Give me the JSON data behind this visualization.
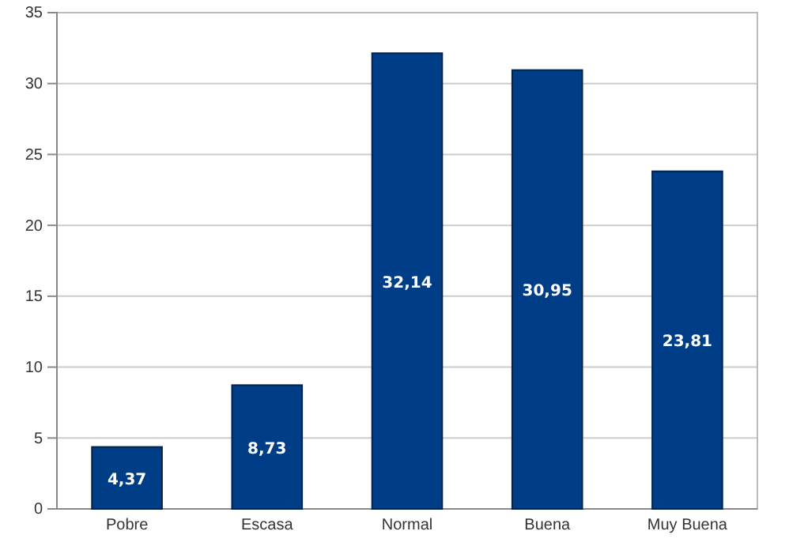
{
  "chart_data": {
    "type": "bar",
    "categories": [
      "Pobre",
      "Escasa",
      "Normal",
      "Buena",
      "Muy Buena"
    ],
    "values": [
      4.37,
      8.73,
      32.14,
      30.95,
      23.81
    ],
    "value_labels": [
      "4,37",
      "8,73",
      "32,14",
      "30,95",
      "23,81"
    ],
    "color": "#003d87",
    "ylim": [
      0,
      35
    ],
    "yticks": [
      0,
      5,
      10,
      15,
      20,
      25,
      30,
      35
    ],
    "grid": "y"
  }
}
